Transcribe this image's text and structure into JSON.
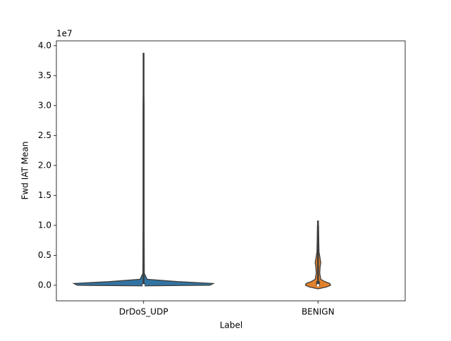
{
  "chart_data": {
    "type": "violin",
    "x_label": "Label",
    "y_label": "Fwd IAT Mean",
    "y_offset_text": "1e7",
    "categories": [
      "DrDoS_UDP",
      "BENIGN"
    ],
    "ylim": [
      -0.26,
      4.08
    ],
    "yticks": [
      {
        "value": 0,
        "label": "0.0"
      },
      {
        "value": 0.5,
        "label": "0.5"
      },
      {
        "value": 1,
        "label": "1.0"
      },
      {
        "value": 1.5,
        "label": "1.5"
      },
      {
        "value": 2,
        "label": "2.0"
      },
      {
        "value": 2.5,
        "label": "2.5"
      },
      {
        "value": 3,
        "label": "3.0"
      },
      {
        "value": 3.5,
        "label": "3.5"
      },
      {
        "value": 4,
        "label": "4.0"
      }
    ],
    "series": [
      {
        "name": "DrDoS_UDP",
        "color": "#3274a1",
        "min": 0,
        "q1": 0,
        "median": 0,
        "q3": 0.01,
        "max": 3.88,
        "kde_y": [
          -0.01,
          0,
          0.03,
          0.06,
          0.1,
          0.2,
          1,
          2,
          3,
          3.88
        ],
        "kde_width": [
          0,
          0.95,
          1,
          0.5,
          0.05,
          0.01,
          0.008,
          0.008,
          0.008,
          0
        ]
      },
      {
        "name": "BENIGN",
        "color": "#e1812c",
        "min": 0,
        "q1": 0,
        "median": 0,
        "q3": 0.05,
        "max": 1.08,
        "kde_y": [
          -0.06,
          -0.03,
          0,
          0.03,
          0.06,
          0.1,
          0.2,
          0.3,
          0.38,
          0.45,
          0.55,
          0.7,
          1,
          1.08
        ],
        "kde_width": [
          0,
          0.12,
          0.18,
          0.17,
          0.1,
          0.04,
          0.025,
          0.03,
          0.04,
          0.03,
          0.015,
          0.012,
          0.008,
          0
        ]
      }
    ]
  }
}
